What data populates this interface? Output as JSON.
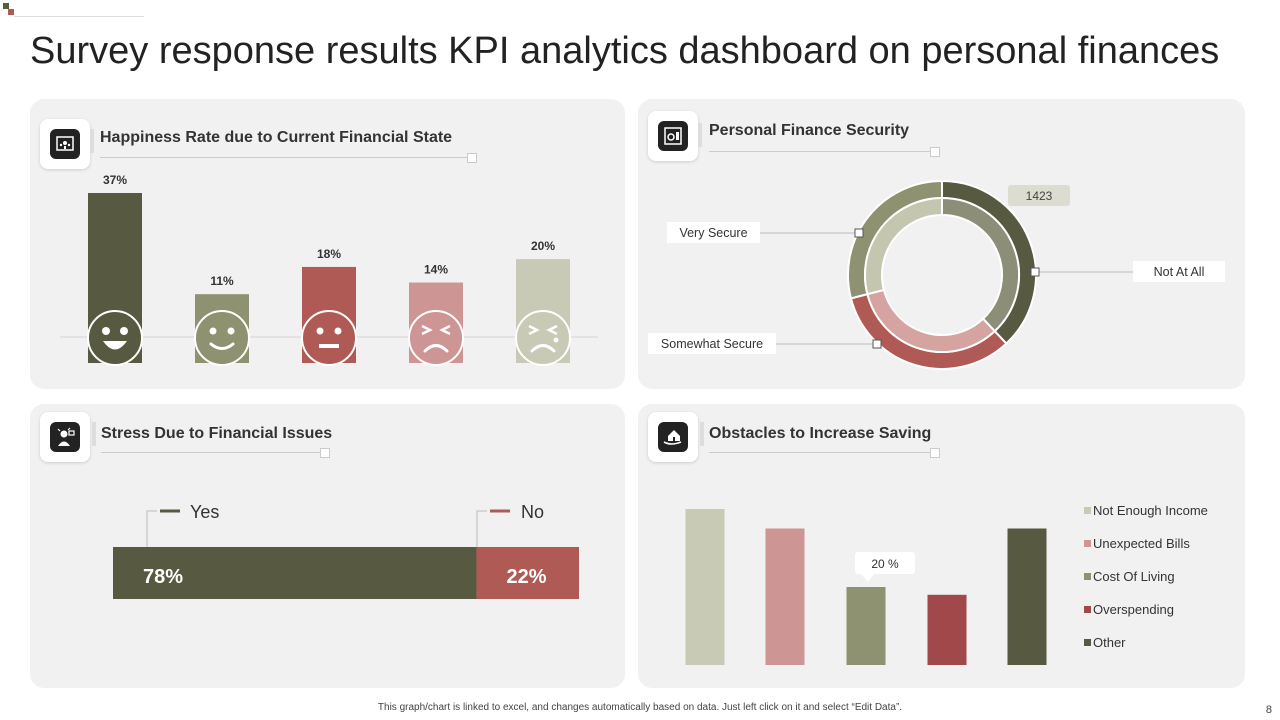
{
  "page": {
    "title": "Survey response results KPI analytics dashboard on personal finances",
    "footer_note": "This graph/chart is linked to excel, and changes automatically based on data. Just left click on it and select “Edit Data”.",
    "page_number": "8"
  },
  "panels": {
    "happiness": {
      "title": "Happiness Rate due to Current Financial State",
      "icon": "analytics-screen-icon"
    },
    "security": {
      "title": "Personal Finance Security",
      "icon": "safe-icon"
    },
    "stress": {
      "title": "Stress Due to Financial Issues",
      "icon": "stressed-person-icon"
    },
    "obstacles": {
      "title": "Obstacles to Increase Saving",
      "icon": "house-hand-icon"
    }
  },
  "colors": {
    "dark_olive": "#575940",
    "olive": "#8f9270",
    "light_olive": "#c8cab5",
    "red": "#b05a55",
    "pink": "#cd9593",
    "dark_red": "#a0484a"
  },
  "chart_data": [
    {
      "id": "happiness",
      "type": "bar",
      "title": "Happiness Rate due to Current Financial State",
      "categories": [
        "very-happy",
        "happy",
        "neutral",
        "unhappy",
        "very-unhappy"
      ],
      "values": [
        37,
        11,
        18,
        14,
        20
      ],
      "labels": [
        "37%",
        "11%",
        "18%",
        "14%",
        "20%"
      ],
      "colors": [
        "#575940",
        "#8f9270",
        "#b05a55",
        "#cd9593",
        "#c8cab5"
      ],
      "ylim": [
        0,
        40
      ]
    },
    {
      "id": "security",
      "type": "pie",
      "title": "Personal Finance Security",
      "categories": [
        "Not At All",
        "Somewhat Secure",
        "Very Secure"
      ],
      "values": [
        38,
        33,
        29
      ],
      "colors": [
        "#575940",
        "#b05a55",
        "#8f9270"
      ],
      "callout": "1423"
    },
    {
      "id": "stress",
      "type": "bar",
      "title": "Stress Due to Financial Issues",
      "categories": [
        "Yes",
        "No"
      ],
      "values": [
        78,
        22
      ],
      "labels": [
        "78%",
        "22%"
      ],
      "colors": [
        "#575940",
        "#b05a55"
      ]
    },
    {
      "id": "obstacles",
      "type": "bar",
      "title": "Obstacles to Increase Saving",
      "categories": [
        "Not Enough Income",
        "Unexpected Bills",
        "Cost Of Living",
        "Overspending",
        "Other"
      ],
      "values": [
        40,
        35,
        20,
        18,
        35
      ],
      "colors": [
        "#c8cab5",
        "#cd9593",
        "#8f9270",
        "#a0484a",
        "#575940"
      ],
      "callout": "20 %",
      "ylim": [
        0,
        40
      ]
    }
  ]
}
